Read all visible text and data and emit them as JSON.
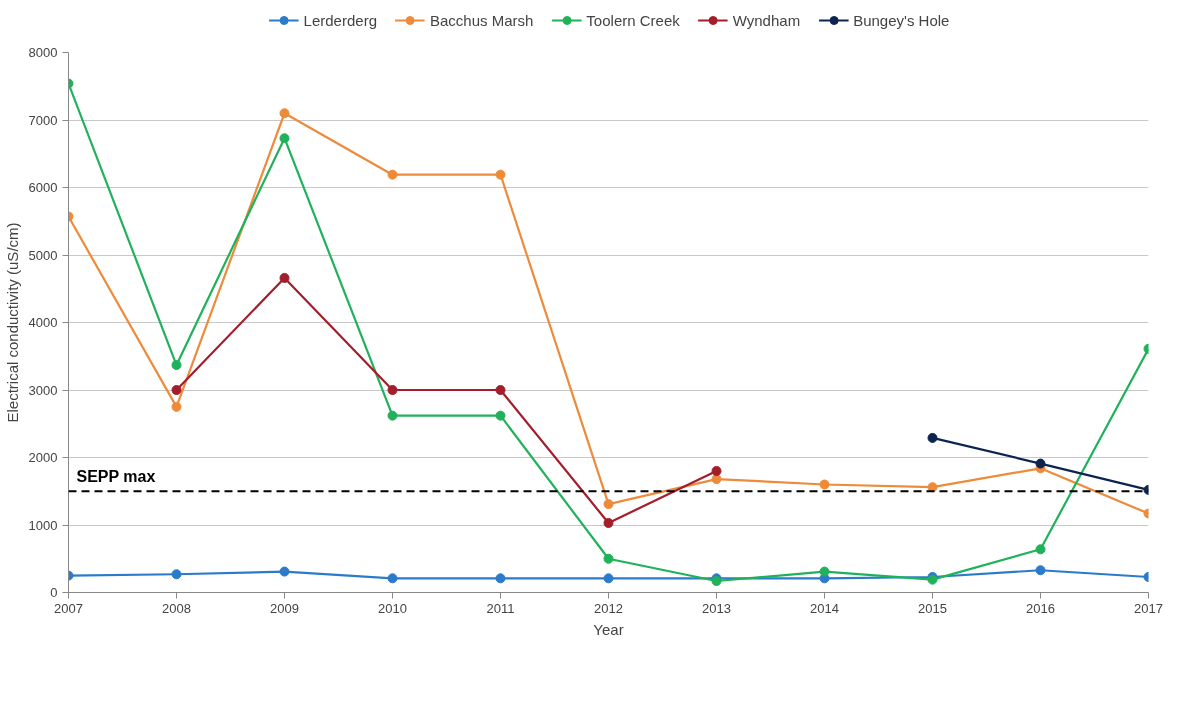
{
  "chart_data": {
    "type": "line",
    "xlabel": "Year",
    "ylabel": "Electrical conductivity (uS/cm)",
    "x": [
      2007,
      2008,
      2009,
      2010,
      2011,
      2012,
      2013,
      2014,
      2015,
      2016,
      2017
    ],
    "series": [
      {
        "name": "Lerderderg",
        "color": "#2b7bca",
        "values": [
          250,
          270,
          310,
          210,
          210,
          210,
          210,
          210,
          230,
          330,
          230
        ]
      },
      {
        "name": "Bacchus Marsh",
        "color": "#ed8b3a",
        "values": [
          5570,
          2750,
          7100,
          6190,
          6190,
          1310,
          1680,
          1600,
          1560,
          1840,
          1170
        ]
      },
      {
        "name": "Toolern Creek",
        "color": "#1fb25a",
        "values": [
          7540,
          3370,
          6730,
          2620,
          2620,
          500,
          170,
          310,
          190,
          640,
          3610
        ]
      },
      {
        "name": "Wyndham",
        "color": "#a31d2b",
        "values": [
          null,
          3000,
          4660,
          3000,
          3000,
          1030,
          1800,
          null,
          null,
          null,
          null
        ]
      },
      {
        "name": "Bungey's Hole",
        "color": "#0d2451",
        "values": [
          null,
          null,
          null,
          null,
          null,
          null,
          null,
          null,
          2290,
          1910,
          1520
        ]
      }
    ],
    "xlim": [
      2007,
      2017
    ],
    "xticks": [
      2007,
      2008,
      2009,
      2010,
      2011,
      2012,
      2013,
      2014,
      2015,
      2016,
      2017
    ],
    "ylim": [
      0,
      8000
    ],
    "yticks": [
      0,
      1000,
      2000,
      3000,
      4000,
      5000,
      6000,
      7000,
      8000
    ],
    "ref_lines": [
      {
        "axis": "y",
        "value": 1500,
        "label": "SEPP max",
        "color": "#000000",
        "line_style": "dashed"
      }
    ],
    "grid": "y",
    "legend": "top",
    "marker": "circle",
    "line_style": "solid"
  }
}
